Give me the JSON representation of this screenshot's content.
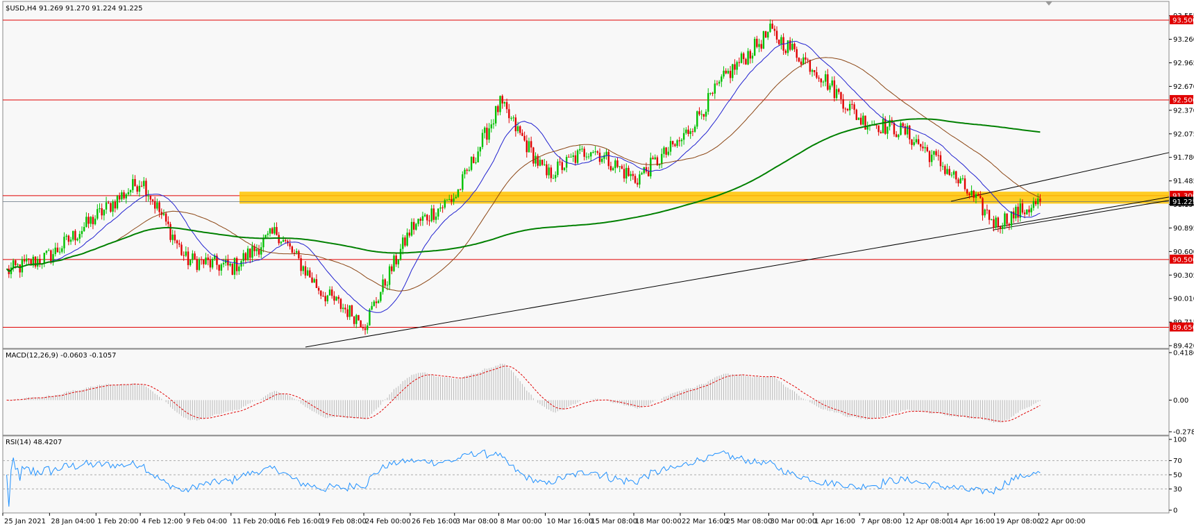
{
  "main_panel": {
    "header": "$USD,H4  91.269 91.270 91.224 91.225",
    "price_ticks": [
      "93.555",
      "93.260",
      "92.965",
      "92.670",
      "92.370",
      "92.075",
      "91.780",
      "91.485",
      "91.190",
      "90.895",
      "90.600",
      "90.305",
      "90.010",
      "89.715",
      "89.420"
    ],
    "level_tags": [
      {
        "text": "93.500",
        "value": 93.5,
        "bg": "#e00000"
      },
      {
        "text": "92.500",
        "value": 92.5,
        "bg": "#e00000"
      },
      {
        "text": "91.300",
        "value": 91.3,
        "bg": "#e00000"
      },
      {
        "text": "91.225",
        "value": 91.225,
        "bg": "#000000"
      },
      {
        "text": "90.500",
        "value": 90.5,
        "bg": "#e00000"
      },
      {
        "text": "89.650",
        "value": 89.65,
        "bg": "#e00000"
      }
    ]
  },
  "macd_panel": {
    "header": "MACD(12,26,9) -0.0603 -0.1057",
    "ticks": [
      "0.4186",
      "0.00",
      "-0.2788"
    ]
  },
  "rsi_panel": {
    "header": "RSI(14) 48.4207",
    "ticks": [
      "100",
      "70",
      "50",
      "30",
      "0"
    ]
  },
  "time_axis": [
    "25 Jan 2021",
    "28 Jan 04:00",
    "1 Feb 20:00",
    "4 Feb 12:00",
    "9 Feb 04:00",
    "11 Feb 20:00",
    "16 Feb 16:00",
    "19 Feb 08:00",
    "24 Feb 00:00",
    "26 Feb 16:00",
    "3 Mar 08:00",
    "8 Mar 00:00",
    "10 Mar 16:00",
    "15 Mar 08:00",
    "18 Mar 00:00",
    "22 Mar 16:00",
    "25 Mar 08:00",
    "30 Mar 00:00",
    "1 Apr 16:00",
    "7 Apr 08:00",
    "12 Apr 08:00",
    "14 Apr 16:00",
    "19 Apr 08:00",
    "22 Apr 00:00"
  ],
  "chart_data": {
    "type": "candlestick",
    "symbol": "$USD",
    "timeframe": "H4",
    "ylim": [
      89.42,
      93.7
    ],
    "close_path": [
      {
        "x": "25 Jan 2021",
        "y": 90.35
      },
      {
        "x": "28 Jan 04:00",
        "y": 90.55
      },
      {
        "x": "1 Feb 20:00",
        "y": 91.05
      },
      {
        "x": "4 Feb 12:00",
        "y": 91.5
      },
      {
        "x": "9 Feb 04:00",
        "y": 90.5
      },
      {
        "x": "11 Feb 20:00",
        "y": 90.4
      },
      {
        "x": "16 Feb 16:00",
        "y": 90.85
      },
      {
        "x": "19 Feb 08:00",
        "y": 90.1
      },
      {
        "x": "24 Feb 00:00",
        "y": 89.7
      },
      {
        "x": "26 Feb 16:00",
        "y": 90.9
      },
      {
        "x": "3 Mar 08:00",
        "y": 91.3
      },
      {
        "x": "8 Mar 00:00",
        "y": 92.45
      },
      {
        "x": "10 Mar 16:00",
        "y": 91.55
      },
      {
        "x": "15 Mar 08:00",
        "y": 91.9
      },
      {
        "x": "18 Mar 00:00",
        "y": 91.5
      },
      {
        "x": "22 Mar 16:00",
        "y": 92.0
      },
      {
        "x": "25 Mar 08:00",
        "y": 92.8
      },
      {
        "x": "30 Mar 00:00",
        "y": 93.35
      },
      {
        "x": "1 Apr 16:00",
        "y": 92.9
      },
      {
        "x": "7 Apr 08:00",
        "y": 92.25
      },
      {
        "x": "12 Apr 08:00",
        "y": 92.1
      },
      {
        "x": "14 Apr 16:00",
        "y": 91.6
      },
      {
        "x": "19 Apr 08:00",
        "y": 90.95
      },
      {
        "x": "22 Apr 00:00",
        "y": 91.225
      }
    ],
    "horizontal_levels": [
      93.5,
      92.5,
      91.3,
      90.5,
      89.65
    ],
    "supply_zone": [
      91.2,
      91.35
    ],
    "macd": {
      "macd": -0.0603,
      "signal": -0.1057,
      "ylim": [
        -0.2788,
        0.4186
      ]
    },
    "rsi": {
      "value": 48.4207,
      "levels": [
        70,
        50,
        30
      ],
      "ylim": [
        0,
        100
      ]
    },
    "colors": {
      "bull": "#00c000",
      "bear": "#e00000",
      "ma_fast": "#2020d0",
      "ma_mid": "#8b4513",
      "ma_slow": "#008000",
      "zone": "#ffc400",
      "rsi_line": "#1e90ff"
    }
  }
}
